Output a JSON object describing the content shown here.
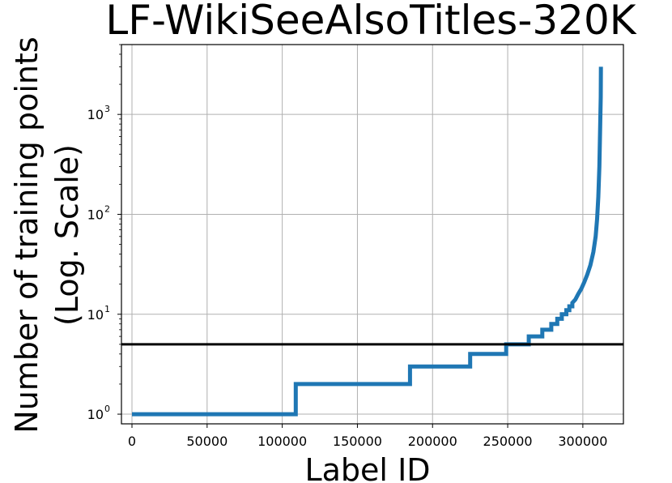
{
  "chart_data": {
    "type": "line",
    "title": "LF-WikiSeeAlsoTitles-320K",
    "xlabel": "Label ID",
    "ylabel_line1": "Number of training points",
    "ylabel_line2": "(Log. Scale)",
    "yscale": "log",
    "xlim": [
      -7000,
      327000
    ],
    "ylim": [
      0.8,
      5000
    ],
    "grid": true,
    "x_ticks": [
      "0",
      "50000",
      "100000",
      "150000",
      "200000",
      "250000",
      "300000"
    ],
    "x_tick_values": [
      0,
      50000,
      100000,
      150000,
      200000,
      250000,
      300000
    ],
    "y_tick_base": "10",
    "y_tick_exponents": [
      "0",
      "1",
      "2",
      "3"
    ],
    "y_tick_values": [
      1,
      10,
      100,
      1000
    ],
    "threshold": {
      "y": 5,
      "color": "#000000"
    },
    "series": [
      {
        "color": "#1f77b4",
        "points": [
          [
            0,
            1
          ],
          [
            109000,
            1
          ],
          [
            109000,
            2
          ],
          [
            185000,
            2
          ],
          [
            185000,
            3
          ],
          [
            225000,
            3
          ],
          [
            225000,
            4
          ],
          [
            249000,
            4
          ],
          [
            249000,
            5
          ],
          [
            264000,
            5
          ],
          [
            264000,
            6
          ],
          [
            273000,
            6
          ],
          [
            273000,
            7
          ],
          [
            279000,
            7
          ],
          [
            279000,
            8
          ],
          [
            283000,
            8
          ],
          [
            283000,
            9
          ],
          [
            286000,
            9
          ],
          [
            286000,
            10
          ],
          [
            289000,
            10
          ],
          [
            289000,
            11
          ],
          [
            291000,
            11
          ],
          [
            291000,
            12
          ],
          [
            293000,
            12
          ],
          [
            293000,
            13
          ],
          [
            295000,
            14
          ],
          [
            297000,
            16
          ],
          [
            299000,
            18
          ],
          [
            301000,
            21
          ],
          [
            303000,
            25
          ],
          [
            305000,
            31
          ],
          [
            307000,
            42
          ],
          [
            308500,
            60
          ],
          [
            309500,
            90
          ],
          [
            310300,
            150
          ],
          [
            311000,
            300
          ],
          [
            311500,
            700
          ],
          [
            311900,
            1500
          ],
          [
            312000,
            3000
          ]
        ]
      }
    ]
  }
}
